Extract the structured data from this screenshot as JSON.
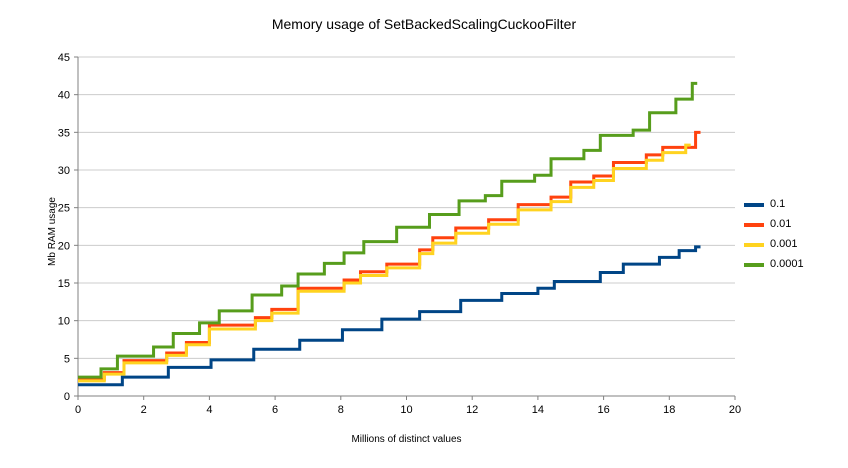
{
  "chart_data": {
    "type": "line",
    "step": "after",
    "title": "Memory usage of SetBackedScalingCuckooFilter",
    "xlabel": "Millions of distinct values",
    "ylabel": "Mb RAM usage",
    "xlim": [
      0,
      20
    ],
    "ylim": [
      0,
      45
    ],
    "xticks": [
      0,
      2,
      4,
      6,
      8,
      10,
      12,
      14,
      16,
      18,
      20
    ],
    "yticks": [
      0,
      5,
      10,
      15,
      20,
      25,
      30,
      35,
      40,
      45
    ],
    "grid": "horizontal",
    "legend_position": "right",
    "grid_color": "#cccccc",
    "axis_color": "#808080",
    "series": [
      {
        "name": "0.1",
        "color": "#004586",
        "points": [
          [
            0,
            1.5
          ],
          [
            1.35,
            2.5
          ],
          [
            2.75,
            3.8
          ],
          [
            4.05,
            4.8
          ],
          [
            5.35,
            6.2
          ],
          [
            6.75,
            7.4
          ],
          [
            8.05,
            8.8
          ],
          [
            9.25,
            10.2
          ],
          [
            10.4,
            11.2
          ],
          [
            11.65,
            12.7
          ],
          [
            12.9,
            13.6
          ],
          [
            14.0,
            14.3
          ],
          [
            14.5,
            15.2
          ],
          [
            15.9,
            16.4
          ],
          [
            16.6,
            17.5
          ],
          [
            17.7,
            18.4
          ],
          [
            18.3,
            19.3
          ],
          [
            18.8,
            19.8
          ]
        ]
      },
      {
        "name": "0.01",
        "color": "#ff420e",
        "points": [
          [
            0,
            2.2
          ],
          [
            0.8,
            3.1
          ],
          [
            1.4,
            4.7
          ],
          [
            2.7,
            5.7
          ],
          [
            3.3,
            7.1
          ],
          [
            4.0,
            9.4
          ],
          [
            5.4,
            10.4
          ],
          [
            5.9,
            11.5
          ],
          [
            6.7,
            14.3
          ],
          [
            8.1,
            15.4
          ],
          [
            8.6,
            16.5
          ],
          [
            9.4,
            17.5
          ],
          [
            10.4,
            19.4
          ],
          [
            10.8,
            21.0
          ],
          [
            11.5,
            22.3
          ],
          [
            12.5,
            23.4
          ],
          [
            13.4,
            25.4
          ],
          [
            14.4,
            26.4
          ],
          [
            15.0,
            28.4
          ],
          [
            15.7,
            29.2
          ],
          [
            16.3,
            31.0
          ],
          [
            17.3,
            32.0
          ],
          [
            17.8,
            33.0
          ],
          [
            18.8,
            35.0
          ]
        ]
      },
      {
        "name": "0.001",
        "color": "#ffd320",
        "points": [
          [
            0,
            2.0
          ],
          [
            0.8,
            2.9
          ],
          [
            1.4,
            4.4
          ],
          [
            2.7,
            5.4
          ],
          [
            3.3,
            6.8
          ],
          [
            4.0,
            8.9
          ],
          [
            5.4,
            10.0
          ],
          [
            5.9,
            11.0
          ],
          [
            6.7,
            13.9
          ],
          [
            8.1,
            15.0
          ],
          [
            8.6,
            16.0
          ],
          [
            9.4,
            17.0
          ],
          [
            10.4,
            18.9
          ],
          [
            10.8,
            20.3
          ],
          [
            11.5,
            21.6
          ],
          [
            12.5,
            22.8
          ],
          [
            13.4,
            24.7
          ],
          [
            14.4,
            25.8
          ],
          [
            15.0,
            27.7
          ],
          [
            15.7,
            28.6
          ],
          [
            16.3,
            30.2
          ],
          [
            17.3,
            31.3
          ],
          [
            17.8,
            32.3
          ],
          [
            18.5,
            33.3
          ]
        ]
      },
      {
        "name": "0.0001",
        "color": "#579d1c",
        "points": [
          [
            0,
            2.5
          ],
          [
            0.7,
            3.6
          ],
          [
            1.2,
            5.3
          ],
          [
            2.3,
            6.5
          ],
          [
            2.9,
            8.3
          ],
          [
            3.7,
            9.7
          ],
          [
            4.3,
            11.3
          ],
          [
            5.3,
            13.4
          ],
          [
            6.2,
            14.6
          ],
          [
            6.7,
            16.2
          ],
          [
            7.5,
            17.6
          ],
          [
            8.1,
            19.0
          ],
          [
            8.7,
            20.5
          ],
          [
            9.7,
            22.4
          ],
          [
            10.7,
            24.1
          ],
          [
            11.6,
            25.9
          ],
          [
            12.4,
            26.6
          ],
          [
            12.9,
            28.5
          ],
          [
            13.9,
            29.3
          ],
          [
            14.4,
            31.5
          ],
          [
            15.4,
            32.6
          ],
          [
            15.9,
            34.6
          ],
          [
            16.9,
            35.3
          ],
          [
            17.4,
            37.6
          ],
          [
            18.2,
            39.4
          ],
          [
            18.7,
            41.5
          ]
        ]
      }
    ]
  }
}
